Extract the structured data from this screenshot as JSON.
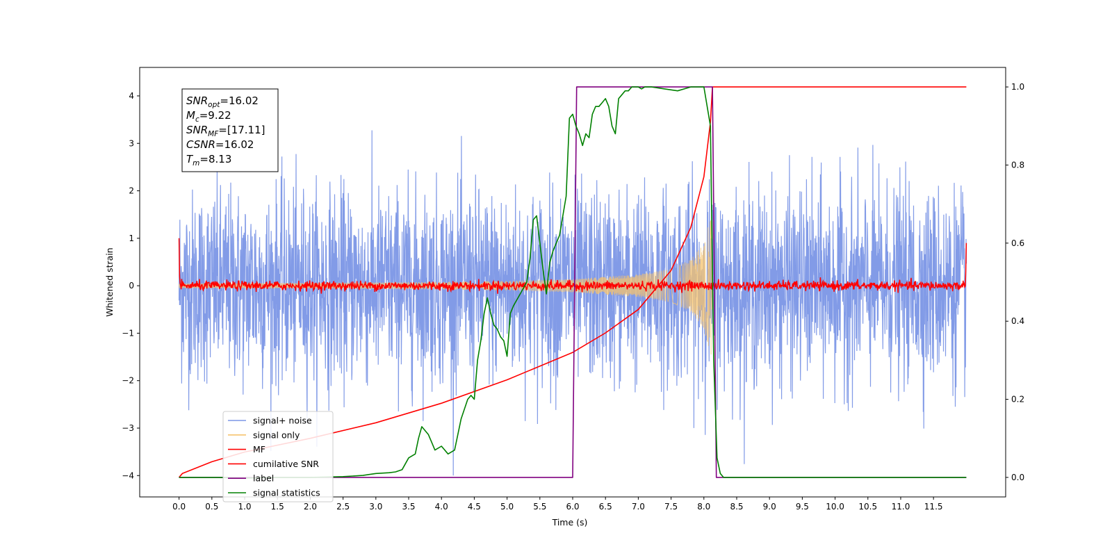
{
  "chart_data": {
    "type": "line",
    "xlabel": "Time (s)",
    "ylabel": "Whitened strain",
    "xlim": [
      -0.6,
      12.6
    ],
    "ylim_left": [
      -4.45,
      4.6
    ],
    "ylim_right": [
      -0.05,
      1.05
    ],
    "x_tick_labels": [
      "0.0",
      "0.5",
      "1.0",
      "1.5",
      "2.0",
      "2.5",
      "3.0",
      "3.5",
      "4.0",
      "4.5",
      "5.0",
      "5.5",
      "6.0",
      "6.5",
      "7.0",
      "7.5",
      "8.0",
      "8.5",
      "9.0",
      "9.5",
      "10.0",
      "10.5",
      "11.0",
      "11.5"
    ],
    "y_left_tick_labels": [
      "4",
      "3",
      "2",
      "1",
      "0",
      "−1",
      "−2",
      "−3",
      "−4"
    ],
    "y_left_tick_values": [
      4,
      3,
      2,
      1,
      0,
      -1,
      -2,
      -3,
      -4
    ],
    "y_right_tick_labels": [
      "1.0",
      "0.8",
      "0.6",
      "0.4",
      "0.2",
      "0.0"
    ],
    "y_right_tick_values": [
      1.0,
      0.8,
      0.6,
      0.4,
      0.2,
      0.0
    ],
    "info_box": [
      {
        "sym": "SNR",
        "sub": "opt",
        "rest": "=16.02"
      },
      {
        "sym": "M",
        "sub": "c",
        "rest": "=9.22"
      },
      {
        "sym": "SNR",
        "sub": "MF",
        "rest": "=[17.11]"
      },
      {
        "sym": "CSNR",
        "sub": "",
        "rest": "=16.02"
      },
      {
        "sym": "T",
        "sub": "m",
        "rest": "=8.13"
      }
    ],
    "legend": {
      "position": "lower-left",
      "entries": [
        {
          "label": "signal+ noise",
          "color": "#7b96e6"
        },
        {
          "label": "signal only",
          "color": "#f5c36e"
        },
        {
          "label": "MF",
          "color": "#ff0000"
        },
        {
          "label": "cumilative SNR",
          "color": "#ff0000"
        },
        {
          "label": "label",
          "color": "#800080"
        },
        {
          "label": "signal statistics",
          "color": "#008000"
        }
      ]
    },
    "series": [
      {
        "name": "signal+ noise",
        "axis": "left",
        "color": "#7b96e6",
        "x_range": [
          0.0,
          12.0
        ],
        "description_values": {
          "std": 1.0,
          "min": -4.0,
          "max": 4.1
        }
      },
      {
        "name": "signal only",
        "axis": "left",
        "color": "#f5c36e",
        "x_range": [
          0.0,
          8.13
        ],
        "envelope": {
          "x": [
            0.0,
            2.0,
            4.0,
            5.0,
            6.0,
            7.0,
            7.5,
            7.8,
            8.0,
            8.13
          ],
          "amp": [
            0.05,
            0.06,
            0.08,
            0.1,
            0.14,
            0.24,
            0.35,
            0.55,
            0.9,
            1.6
          ]
        }
      },
      {
        "name": "MF",
        "axis": "left",
        "color": "#ff0000",
        "x_range": [
          0.0,
          12.0
        ],
        "edge_values": {
          "start": 1.0,
          "end": 0.9
        },
        "noise_amp": 0.05
      },
      {
        "name": "cumilative SNR",
        "axis": "right",
        "color": "#ff0000",
        "x": [
          0.0,
          0.05,
          0.5,
          1.0,
          2.0,
          3.0,
          4.0,
          5.0,
          6.0,
          6.5,
          7.0,
          7.5,
          7.8,
          8.0,
          8.1,
          8.13,
          8.14,
          12.0
        ],
        "y": [
          0.0,
          0.01,
          0.04,
          0.065,
          0.1,
          0.14,
          0.19,
          0.25,
          0.32,
          0.37,
          0.43,
          0.53,
          0.64,
          0.77,
          0.91,
          1.0,
          1.0,
          1.0
        ]
      },
      {
        "name": "label",
        "axis": "right",
        "color": "#800080",
        "x": [
          0.0,
          6.0,
          6.06,
          8.13,
          8.19,
          12.0
        ],
        "y": [
          0.0,
          0.0,
          1.0,
          1.0,
          0.0,
          0.0
        ]
      },
      {
        "name": "signal statistics",
        "axis": "right",
        "color": "#008000",
        "x": [
          0.0,
          0.3,
          0.6,
          1.0,
          1.5,
          2.0,
          2.5,
          2.8,
          3.0,
          3.2,
          3.3,
          3.4,
          3.5,
          3.6,
          3.65,
          3.7,
          3.75,
          3.8,
          3.85,
          3.9,
          4.0,
          4.1,
          4.2,
          4.3,
          4.4,
          4.45,
          4.5,
          4.55,
          4.6,
          4.65,
          4.7,
          4.75,
          4.8,
          4.85,
          4.9,
          4.95,
          5.0,
          5.05,
          5.1,
          5.2,
          5.3,
          5.35,
          5.4,
          5.45,
          5.5,
          5.55,
          5.6,
          5.65,
          5.7,
          5.8,
          5.9,
          5.95,
          6.0,
          6.05,
          6.1,
          6.15,
          6.2,
          6.25,
          6.3,
          6.35,
          6.4,
          6.45,
          6.5,
          6.55,
          6.6,
          6.65,
          6.7,
          6.75,
          6.8,
          6.85,
          6.9,
          7.0,
          7.05,
          7.1,
          7.2,
          7.4,
          7.6,
          7.8,
          8.0,
          8.1,
          8.15,
          8.2,
          8.25,
          8.3,
          12.0
        ],
        "y": [
          0.0,
          0.0,
          0.0,
          -0.002,
          0.0,
          0.0,
          0.002,
          0.005,
          0.01,
          0.012,
          0.014,
          0.02,
          0.05,
          0.06,
          0.1,
          0.13,
          0.12,
          0.11,
          0.09,
          0.07,
          0.08,
          0.06,
          0.07,
          0.15,
          0.2,
          0.21,
          0.2,
          0.3,
          0.35,
          0.42,
          0.46,
          0.42,
          0.39,
          0.38,
          0.36,
          0.35,
          0.31,
          0.42,
          0.44,
          0.47,
          0.5,
          0.56,
          0.66,
          0.67,
          0.6,
          0.53,
          0.47,
          0.55,
          0.58,
          0.62,
          0.72,
          0.92,
          0.93,
          0.9,
          0.88,
          0.85,
          0.88,
          0.87,
          0.93,
          0.95,
          0.95,
          0.96,
          0.97,
          0.95,
          0.9,
          0.88,
          0.97,
          0.98,
          0.99,
          0.99,
          1.0,
          1.0,
          0.995,
          1.0,
          1.0,
          0.995,
          0.99,
          1.0,
          1.0,
          0.9,
          0.3,
          0.05,
          0.01,
          0.0,
          0.0
        ]
      }
    ]
  }
}
